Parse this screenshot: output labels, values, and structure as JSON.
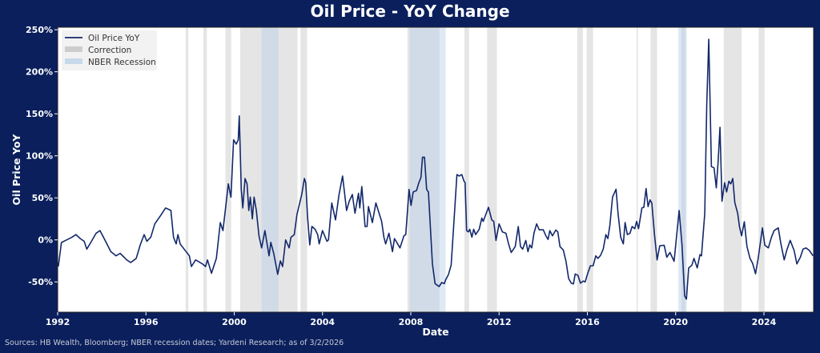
{
  "chart_data": {
    "type": "line",
    "title": "Oil Price - YoY Change",
    "xlabel": "Date",
    "ylabel": "Oil Price YoY",
    "xlim": [
      1992,
      2026.25
    ],
    "ylim": [
      -86,
      253
    ],
    "x_ticks": [
      1992,
      1996,
      2000,
      2004,
      2008,
      2012,
      2016,
      2020,
      2024
    ],
    "y_ticks": [
      -50,
      0,
      50,
      100,
      150,
      200,
      250
    ],
    "y_tick_labels": [
      "-50%",
      "0%",
      "50%",
      "100%",
      "150%",
      "200%",
      "250%"
    ],
    "grid": false,
    "legend": {
      "placement": "top-left",
      "entries": [
        "Oil Price YoY",
        "Correction",
        "NBER Recession"
      ]
    },
    "colors": {
      "line": "#13286b",
      "correction": "#bdbdbd",
      "recession": "#b5cfe8",
      "background": "#0a1f5c"
    },
    "corrections": [
      [
        1997.8,
        1997.92
      ],
      [
        1998.6,
        1998.76
      ],
      [
        1999.6,
        1999.86
      ],
      [
        2000.27,
        2002.87
      ],
      [
        2003.0,
        2003.3
      ],
      [
        2007.85,
        2009.3
      ],
      [
        2010.43,
        2010.64
      ],
      [
        2011.46,
        2011.9
      ],
      [
        2015.54,
        2015.8
      ],
      [
        2015.97,
        2016.26
      ],
      [
        2018.23,
        2018.29
      ],
      [
        2018.86,
        2019.16
      ],
      [
        2020.25,
        2020.45
      ],
      [
        2022.18,
        2022.99
      ],
      [
        2023.76,
        2024.03
      ]
    ],
    "recessions": [
      [
        2001.24,
        2002.0
      ],
      [
        2007.95,
        2009.58
      ],
      [
        2020.12,
        2020.5
      ]
    ],
    "series": [
      {
        "name": "Oil Price YoY",
        "points": [
          [
            1992.03,
            -31.7
          ],
          [
            1992.17,
            -3.2
          ],
          [
            1992.41,
            0
          ],
          [
            1992.65,
            3.2
          ],
          [
            1992.83,
            6.3
          ],
          [
            1993.02,
            1.6
          ],
          [
            1993.2,
            -1.6
          ],
          [
            1993.32,
            -11
          ],
          [
            1993.5,
            -3.2
          ],
          [
            1993.74,
            7.9
          ],
          [
            1993.92,
            11
          ],
          [
            1994.17,
            -1.6
          ],
          [
            1994.41,
            -14
          ],
          [
            1994.65,
            -19
          ],
          [
            1994.83,
            -16
          ],
          [
            1995.13,
            -23.8
          ],
          [
            1995.31,
            -27
          ],
          [
            1995.56,
            -22
          ],
          [
            1995.74,
            -6
          ],
          [
            1995.92,
            6.3
          ],
          [
            1996.04,
            -1.6
          ],
          [
            1996.22,
            3.2
          ],
          [
            1996.4,
            19
          ],
          [
            1996.65,
            28.5
          ],
          [
            1996.89,
            38
          ],
          [
            1997.13,
            35
          ],
          [
            1997.25,
            3
          ],
          [
            1997.37,
            -4.8
          ],
          [
            1997.45,
            6.3
          ],
          [
            1997.55,
            -4.8
          ],
          [
            1997.73,
            -11
          ],
          [
            1997.97,
            -19
          ],
          [
            1998.06,
            -31.7
          ],
          [
            1998.25,
            -23.8
          ],
          [
            1998.56,
            -28.6
          ],
          [
            1998.7,
            -31.7
          ],
          [
            1998.79,
            -23.8
          ],
          [
            1998.97,
            -39.7
          ],
          [
            1999.19,
            -22
          ],
          [
            1999.37,
            20.6
          ],
          [
            1999.49,
            11
          ],
          [
            1999.61,
            38
          ],
          [
            1999.73,
            66.6
          ],
          [
            1999.85,
            50.8
          ],
          [
            1999.97,
            119
          ],
          [
            2000.09,
            114
          ],
          [
            2000.18,
            119
          ],
          [
            2000.23,
            147.5
          ],
          [
            2000.32,
            60
          ],
          [
            2000.39,
            38
          ],
          [
            2000.49,
            73
          ],
          [
            2000.58,
            66.6
          ],
          [
            2000.66,
            35
          ],
          [
            2000.73,
            50.8
          ],
          [
            2000.82,
            25
          ],
          [
            2000.9,
            50.8
          ],
          [
            2001.0,
            35
          ],
          [
            2001.12,
            4.8
          ],
          [
            2001.24,
            -9.5
          ],
          [
            2001.39,
            11
          ],
          [
            2001.58,
            -19
          ],
          [
            2001.66,
            -3
          ],
          [
            2001.79,
            -16
          ],
          [
            2001.97,
            -41
          ],
          [
            2002.09,
            -25
          ],
          [
            2002.19,
            -31.7
          ],
          [
            2002.33,
            0
          ],
          [
            2002.49,
            -9.5
          ],
          [
            2002.57,
            3
          ],
          [
            2002.72,
            6.3
          ],
          [
            2002.84,
            30
          ],
          [
            2003.06,
            54
          ],
          [
            2003.18,
            73
          ],
          [
            2003.24,
            68
          ],
          [
            2003.32,
            28.5
          ],
          [
            2003.42,
            -6
          ],
          [
            2003.52,
            16
          ],
          [
            2003.66,
            12.7
          ],
          [
            2003.78,
            6.3
          ],
          [
            2003.85,
            -4.8
          ],
          [
            2004.0,
            11
          ],
          [
            2004.2,
            -1.6
          ],
          [
            2004.27,
            0
          ],
          [
            2004.42,
            44
          ],
          [
            2004.59,
            23.8
          ],
          [
            2004.75,
            54
          ],
          [
            2004.91,
            76
          ],
          [
            2005.09,
            35
          ],
          [
            2005.21,
            46
          ],
          [
            2005.35,
            54
          ],
          [
            2005.47,
            31.7
          ],
          [
            2005.63,
            55.5
          ],
          [
            2005.69,
            38
          ],
          [
            2005.78,
            63.4
          ],
          [
            2005.93,
            15.9
          ],
          [
            2006.02,
            15.9
          ],
          [
            2006.08,
            39.6
          ],
          [
            2006.26,
            20.6
          ],
          [
            2006.42,
            44
          ],
          [
            2006.68,
            22
          ],
          [
            2006.78,
            3.2
          ],
          [
            2006.86,
            -4.8
          ],
          [
            2007.01,
            7.9
          ],
          [
            2007.17,
            -14
          ],
          [
            2007.26,
            1.6
          ],
          [
            2007.51,
            -9.5
          ],
          [
            2007.69,
            4.8
          ],
          [
            2007.77,
            6.3
          ],
          [
            2007.92,
            60
          ],
          [
            2008.01,
            41
          ],
          [
            2008.11,
            57
          ],
          [
            2008.26,
            58.7
          ],
          [
            2008.35,
            66.6
          ],
          [
            2008.46,
            74.5
          ],
          [
            2008.53,
            98.4
          ],
          [
            2008.62,
            98.4
          ],
          [
            2008.72,
            60
          ],
          [
            2008.8,
            57
          ],
          [
            2008.98,
            -28.6
          ],
          [
            2009.1,
            -52
          ],
          [
            2009.28,
            -55.5
          ],
          [
            2009.4,
            -50.8
          ],
          [
            2009.52,
            -52
          ],
          [
            2009.58,
            -47.6
          ],
          [
            2009.71,
            -41
          ],
          [
            2009.83,
            -30
          ],
          [
            2009.95,
            19
          ],
          [
            2010.09,
            77.7
          ],
          [
            2010.19,
            76
          ],
          [
            2010.31,
            77.7
          ],
          [
            2010.41,
            70
          ],
          [
            2010.46,
            68
          ],
          [
            2010.53,
            11
          ],
          [
            2010.61,
            9.5
          ],
          [
            2010.67,
            12.7
          ],
          [
            2010.77,
            3.2
          ],
          [
            2010.85,
            12.7
          ],
          [
            2010.94,
            6.3
          ],
          [
            2011.1,
            12.7
          ],
          [
            2011.22,
            26
          ],
          [
            2011.28,
            22
          ],
          [
            2011.52,
            38.7
          ],
          [
            2011.67,
            23.8
          ],
          [
            2011.76,
            22
          ],
          [
            2011.86,
            -0.7
          ],
          [
            2012.0,
            19
          ],
          [
            2012.15,
            9.5
          ],
          [
            2012.31,
            7.9
          ],
          [
            2012.43,
            -4.8
          ],
          [
            2012.55,
            -15
          ],
          [
            2012.73,
            -8
          ],
          [
            2012.87,
            15.9
          ],
          [
            2012.97,
            -8
          ],
          [
            2013.07,
            -11
          ],
          [
            2013.21,
            -0.7
          ],
          [
            2013.31,
            -14
          ],
          [
            2013.39,
            -6
          ],
          [
            2013.48,
            -9.5
          ],
          [
            2013.58,
            7.9
          ],
          [
            2013.7,
            19
          ],
          [
            2013.82,
            12
          ],
          [
            2014.0,
            12
          ],
          [
            2014.12,
            4.8
          ],
          [
            2014.22,
            0.6
          ],
          [
            2014.3,
            11
          ],
          [
            2014.42,
            4.8
          ],
          [
            2014.57,
            11.7
          ],
          [
            2014.66,
            9.5
          ],
          [
            2014.76,
            -8
          ],
          [
            2014.91,
            -12
          ],
          [
            2015.03,
            -25.4
          ],
          [
            2015.15,
            -46
          ],
          [
            2015.27,
            -51.4
          ],
          [
            2015.37,
            -52.4
          ],
          [
            2015.45,
            -40.6
          ],
          [
            2015.57,
            -42
          ],
          [
            2015.69,
            -51.4
          ],
          [
            2015.81,
            -49
          ],
          [
            2015.9,
            -50
          ],
          [
            2016.02,
            -39.7
          ],
          [
            2016.14,
            -30.8
          ],
          [
            2016.26,
            -30.8
          ],
          [
            2016.38,
            -19
          ],
          [
            2016.48,
            -22
          ],
          [
            2016.6,
            -18.4
          ],
          [
            2016.72,
            -11
          ],
          [
            2016.84,
            6.3
          ],
          [
            2016.93,
            1.6
          ],
          [
            2017.02,
            17.4
          ],
          [
            2017.14,
            50.8
          ],
          [
            2017.3,
            60.3
          ],
          [
            2017.39,
            31.7
          ],
          [
            2017.51,
            3.2
          ],
          [
            2017.63,
            -4.8
          ],
          [
            2017.71,
            20.6
          ],
          [
            2017.81,
            6.3
          ],
          [
            2017.93,
            7.9
          ],
          [
            2018.03,
            15.9
          ],
          [
            2018.15,
            13.3
          ],
          [
            2018.23,
            22
          ],
          [
            2018.32,
            13.3
          ],
          [
            2018.47,
            38
          ],
          [
            2018.56,
            38.7
          ],
          [
            2018.66,
            61
          ],
          [
            2018.75,
            39.6
          ],
          [
            2018.84,
            47.6
          ],
          [
            2018.92,
            43.8
          ],
          [
            2019.04,
            6.3
          ],
          [
            2019.16,
            -23.8
          ],
          [
            2019.28,
            -7
          ],
          [
            2019.48,
            -6.4
          ],
          [
            2019.6,
            -20.6
          ],
          [
            2019.74,
            -15
          ],
          [
            2019.93,
            -25.4
          ],
          [
            2020.05,
            6.3
          ],
          [
            2020.16,
            34.9
          ],
          [
            2020.29,
            -6.4
          ],
          [
            2020.41,
            -66.6
          ],
          [
            2020.49,
            -70.5
          ],
          [
            2020.59,
            -33.3
          ],
          [
            2020.74,
            -30
          ],
          [
            2020.83,
            -22
          ],
          [
            2020.98,
            -33.3
          ],
          [
            2021.1,
            -17.5
          ],
          [
            2021.17,
            -19
          ],
          [
            2021.32,
            31.7
          ],
          [
            2021.41,
            161.8
          ],
          [
            2021.5,
            238.6
          ],
          [
            2021.62,
            87.2
          ],
          [
            2021.74,
            85.7
          ],
          [
            2021.84,
            61.9
          ],
          [
            2021.92,
            92
          ],
          [
            2022.01,
            133.9
          ],
          [
            2022.1,
            46
          ],
          [
            2022.22,
            68
          ],
          [
            2022.31,
            57
          ],
          [
            2022.41,
            69.8
          ],
          [
            2022.5,
            66.6
          ],
          [
            2022.59,
            73
          ],
          [
            2022.68,
            44.4
          ],
          [
            2022.81,
            31.7
          ],
          [
            2022.89,
            15.9
          ],
          [
            2022.99,
            4.8
          ],
          [
            2023.11,
            21.6
          ],
          [
            2023.23,
            -8
          ],
          [
            2023.37,
            -22
          ],
          [
            2023.49,
            -28
          ],
          [
            2023.62,
            -40.3
          ],
          [
            2023.74,
            -22
          ],
          [
            2023.93,
            14.3
          ],
          [
            2024.04,
            -6.4
          ],
          [
            2024.2,
            -9.5
          ],
          [
            2024.34,
            3.2
          ],
          [
            2024.46,
            11
          ],
          [
            2024.65,
            14.3
          ],
          [
            2024.77,
            -4.8
          ],
          [
            2024.92,
            -23.8
          ],
          [
            2025.04,
            -12
          ],
          [
            2025.19,
            -0.6
          ],
          [
            2025.37,
            -12.7
          ],
          [
            2025.49,
            -28.6
          ],
          [
            2025.65,
            -20.6
          ],
          [
            2025.77,
            -11
          ],
          [
            2025.91,
            -9.5
          ],
          [
            2026.06,
            -12.7
          ],
          [
            2026.22,
            -19
          ]
        ]
      }
    ]
  },
  "source_note": "Sources: HB Wealth, Bloomberg; NBER recession dates; Yardeni Research; as of 3/2/2026"
}
